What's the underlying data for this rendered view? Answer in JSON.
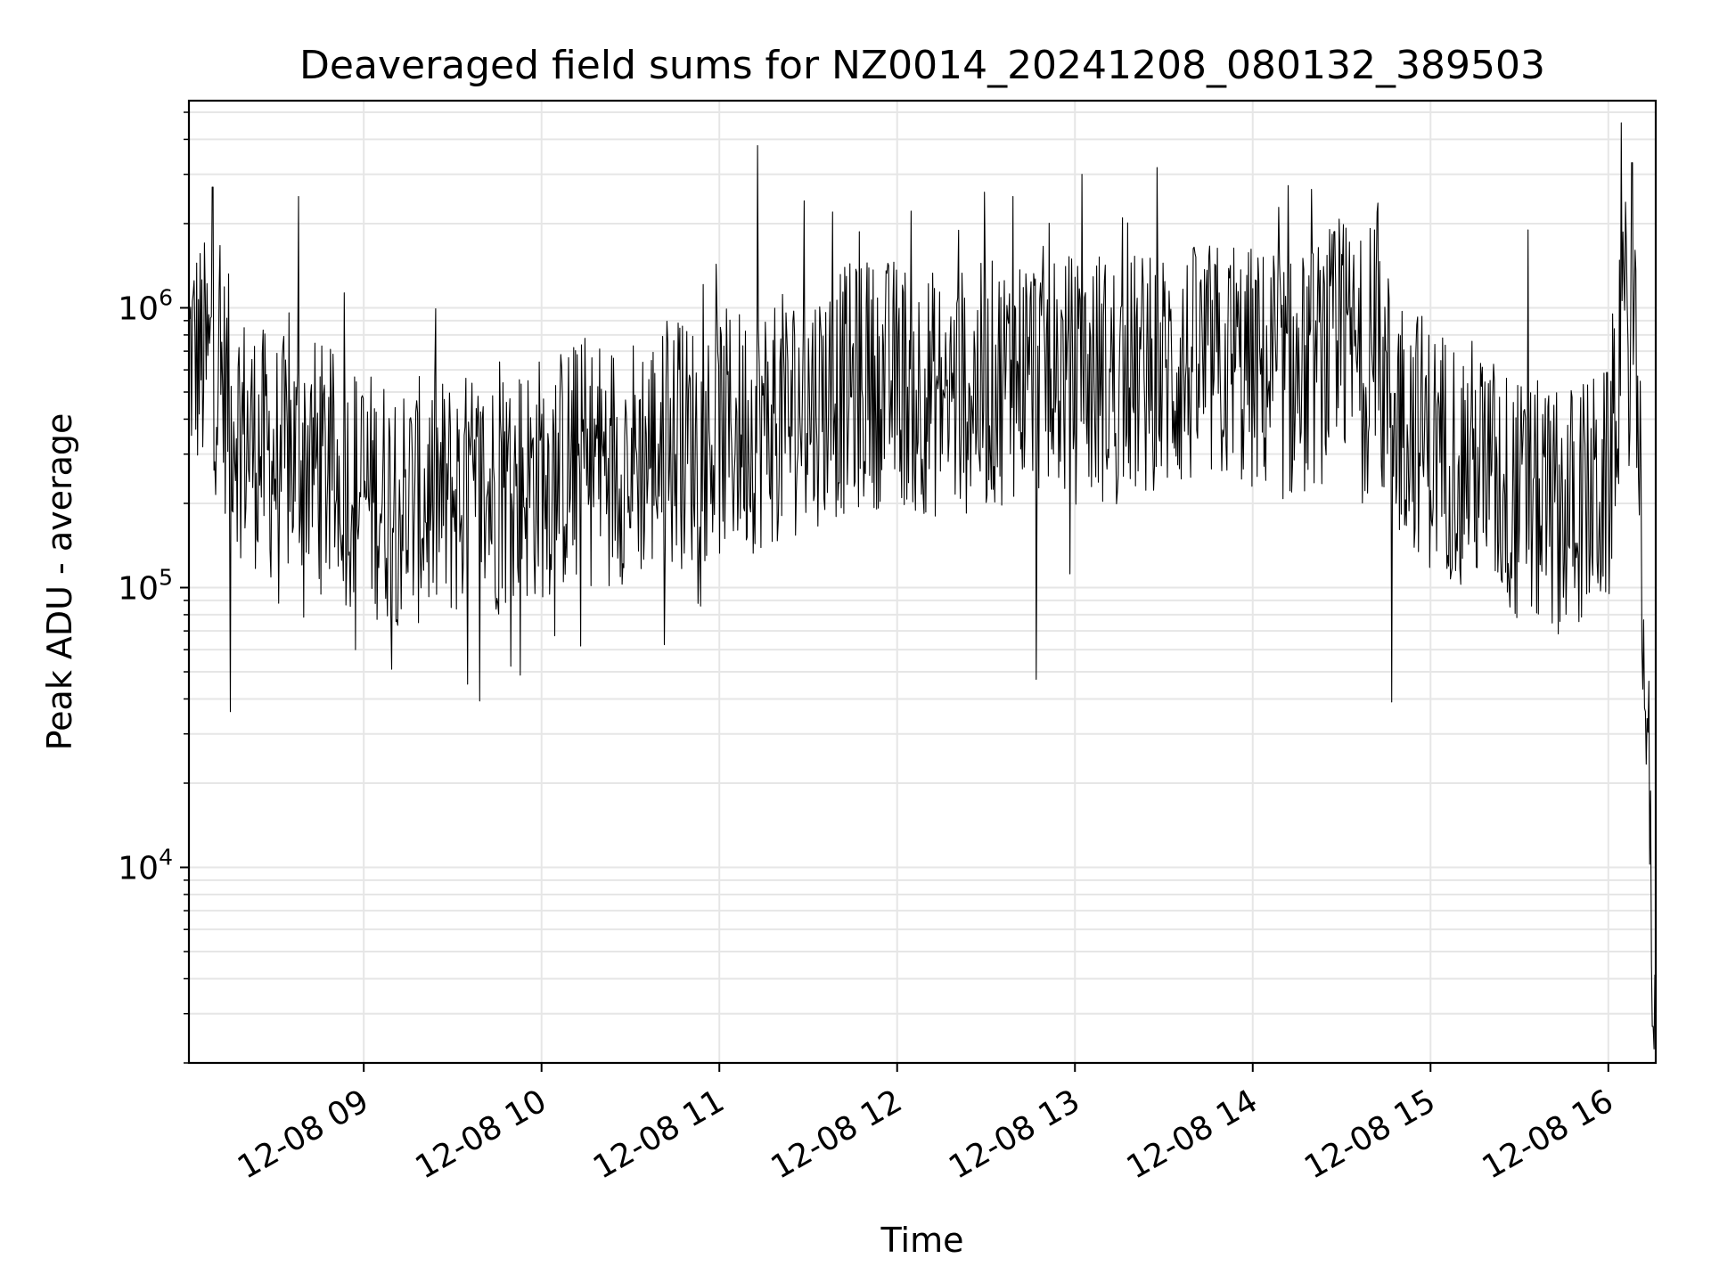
{
  "chart_data": {
    "type": "line",
    "title": "Deaveraged field sums for NZ0014_20241208_080132_389503",
    "xlabel": "Time",
    "ylabel": "Peak ADU - average",
    "yscale": "log",
    "ylim": [
      2000,
      5500000
    ],
    "xlim": [
      "2024-12-08 08:01",
      "2024-12-08 16:16"
    ],
    "grid": true,
    "line_color": "#000000",
    "grid_color": "#e6e6e6",
    "x_ticks": [
      "12-08 09",
      "12-08 10",
      "12-08 11",
      "12-08 12",
      "12-08 13",
      "12-08 14",
      "12-08 15",
      "12-08 16"
    ],
    "y_ticks": [
      {
        "value": 10000,
        "base": "10",
        "exp": "4"
      },
      {
        "value": 100000,
        "base": "10",
        "exp": "5"
      },
      {
        "value": 1000000,
        "base": "10",
        "exp": "6"
      }
    ],
    "series": [
      {
        "x": [
          "08:01",
          "08:10",
          "08:20",
          "08:30",
          "08:40",
          "08:50",
          "09:00",
          "09:15",
          "09:30",
          "09:45",
          "10:00",
          "10:15",
          "10:30",
          "10:45",
          "11:00",
          "11:15",
          "11:30",
          "11:45",
          "12:00",
          "12:15",
          "12:30",
          "12:45",
          "13:00",
          "13:15",
          "13:30",
          "13:45",
          "14:00",
          "14:15",
          "14:30",
          "14:45",
          "15:00",
          "15:15",
          "15:30",
          "15:45",
          "16:00",
          "16:05",
          "16:10",
          "16:13",
          "16:16"
        ],
        "y": [
          700000,
          600000,
          350000,
          280000,
          300000,
          250000,
          220000,
          200000,
          210000,
          220000,
          250000,
          280000,
          290000,
          320000,
          350000,
          380000,
          450000,
          520000,
          550000,
          480000,
          520000,
          620000,
          550000,
          560000,
          580000,
          620000,
          600000,
          550000,
          750000,
          520000,
          320000,
          280000,
          200000,
          190000,
          220000,
          1000000,
          500000,
          30000,
          3000
        ],
        "spikes": [
          {
            "x": "08:09",
            "y": 2700000
          },
          {
            "x": "08:15",
            "y": 36000
          },
          {
            "x": "08:38",
            "y": 2500000
          },
          {
            "x": "11:13",
            "y": 3800000
          },
          {
            "x": "12:39",
            "y": 2500000
          },
          {
            "x": "12:47",
            "y": 47000
          },
          {
            "x": "14:42",
            "y": 2200000
          },
          {
            "x": "14:47",
            "y": 39000
          },
          {
            "x": "15:33",
            "y": 1900000
          },
          {
            "x": "16:08",
            "y": 3300000
          },
          {
            "x": "16:15",
            "y": 2700
          }
        ]
      }
    ]
  }
}
